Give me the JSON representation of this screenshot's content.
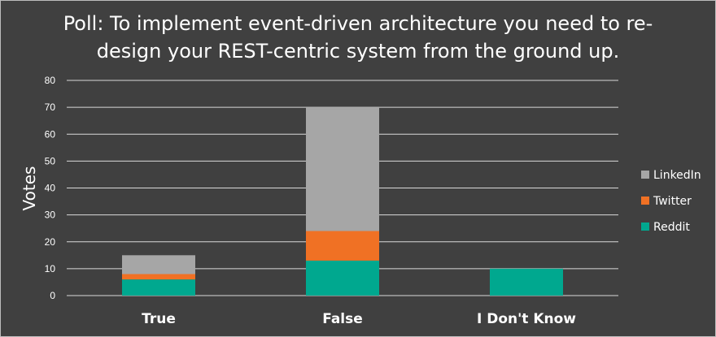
{
  "chart_data": {
    "type": "bar",
    "stacked": true,
    "title": "Poll: To implement event-driven architecture you need to re-design your REST-centric system from the ground up.",
    "ylabel": "Votes",
    "xlabel": "",
    "ylim": [
      0,
      80
    ],
    "yticks": [
      0,
      10,
      20,
      30,
      40,
      50,
      60,
      70,
      80
    ],
    "grid": true,
    "legend_position": "right",
    "categories": [
      "True",
      "False",
      "I Don't Know"
    ],
    "series": [
      {
        "name": "Reddit",
        "color": "#00a88f",
        "values": [
          6,
          13,
          10
        ]
      },
      {
        "name": "Twitter",
        "color": "#f07124",
        "values": [
          2,
          11,
          0
        ]
      },
      {
        "name": "LinkedIn",
        "color": "#a6a6a6",
        "values": [
          7,
          46,
          0
        ]
      }
    ],
    "legend_order": [
      "LinkedIn",
      "Twitter",
      "Reddit"
    ]
  }
}
